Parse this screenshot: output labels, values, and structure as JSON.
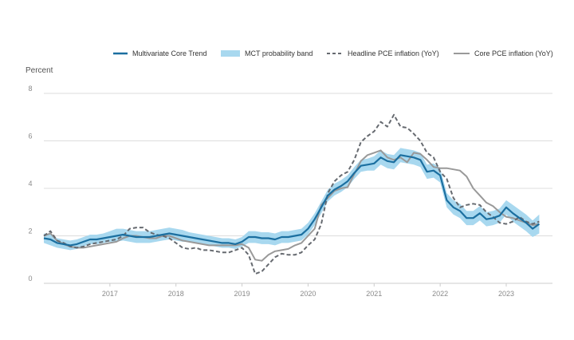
{
  "chart_data": {
    "type": "line",
    "ylabel": "Percent",
    "ylim": [
      0,
      8
    ],
    "yticks": [
      0,
      2,
      4,
      6,
      8
    ],
    "xlim": [
      2016.0,
      2023.7
    ],
    "xticks": [
      "2017",
      "2018",
      "2019",
      "2020",
      "2021",
      "2022",
      "2023"
    ],
    "grid": true,
    "legend_position": "top-right",
    "legend": [
      "Multivariate Core Trend",
      "MCT probability band",
      "Headline PCE inflation (YoY)",
      "Core PCE inflation (YoY)"
    ],
    "colors": {
      "mct": "#1b6fa0",
      "band": "#a8d8ef",
      "headline": "#666a70",
      "core": "#999999",
      "grid": "#dddddd",
      "axis": "#cccccc"
    },
    "series": [
      {
        "name": "Multivariate Core Trend",
        "style": "solid",
        "x": [
          2016.0,
          2016.1,
          2016.2,
          2016.3,
          2016.4,
          2016.5,
          2016.6,
          2016.7,
          2016.8,
          2016.9,
          2017.0,
          2017.1,
          2017.2,
          2017.3,
          2017.4,
          2017.5,
          2017.6,
          2017.7,
          2017.8,
          2017.9,
          2018.0,
          2018.1,
          2018.2,
          2018.3,
          2018.4,
          2018.5,
          2018.6,
          2018.7,
          2018.8,
          2018.9,
          2019.0,
          2019.1,
          2019.2,
          2019.3,
          2019.4,
          2019.5,
          2019.6,
          2019.7,
          2019.8,
          2019.9,
          2020.0,
          2020.1,
          2020.2,
          2020.3,
          2020.4,
          2020.5,
          2020.6,
          2020.7,
          2020.8,
          2020.9,
          2021.0,
          2021.1,
          2021.2,
          2021.3,
          2021.4,
          2021.5,
          2021.6,
          2021.7,
          2021.8,
          2021.9,
          2022.0,
          2022.1,
          2022.2,
          2022.3,
          2022.4,
          2022.5,
          2022.6,
          2022.7,
          2022.8,
          2022.9,
          2023.0,
          2023.1,
          2023.2,
          2023.3,
          2023.4,
          2023.5
        ],
        "y": [
          1.9,
          1.85,
          1.7,
          1.65,
          1.6,
          1.65,
          1.75,
          1.85,
          1.85,
          1.9,
          1.95,
          2.0,
          2.05,
          2.0,
          1.95,
          1.95,
          1.95,
          2.0,
          2.05,
          2.1,
          2.05,
          2.0,
          1.95,
          1.9,
          1.85,
          1.8,
          1.75,
          1.7,
          1.7,
          1.65,
          1.75,
          1.95,
          1.95,
          1.9,
          1.9,
          1.85,
          1.95,
          1.95,
          2.0,
          2.05,
          2.3,
          2.7,
          3.2,
          3.7,
          3.95,
          4.1,
          4.3,
          4.65,
          4.95,
          5.0,
          5.05,
          5.3,
          5.15,
          5.1,
          5.4,
          5.35,
          5.3,
          5.2,
          4.7,
          4.75,
          4.55,
          3.5,
          3.2,
          3.05,
          2.75,
          2.75,
          2.95,
          2.7,
          2.75,
          2.85,
          3.2,
          2.95,
          2.75,
          2.55,
          2.3,
          2.5
        ]
      },
      {
        "name": "MCT probability band",
        "style": "band",
        "x": [
          2016.0,
          2016.1,
          2016.2,
          2016.3,
          2016.4,
          2016.5,
          2016.6,
          2016.7,
          2016.8,
          2016.9,
          2017.0,
          2017.1,
          2017.2,
          2017.3,
          2017.4,
          2017.5,
          2017.6,
          2017.7,
          2017.8,
          2017.9,
          2018.0,
          2018.1,
          2018.2,
          2018.3,
          2018.4,
          2018.5,
          2018.6,
          2018.7,
          2018.8,
          2018.9,
          2019.0,
          2019.1,
          2019.2,
          2019.3,
          2019.4,
          2019.5,
          2019.6,
          2019.7,
          2019.8,
          2019.9,
          2020.0,
          2020.1,
          2020.2,
          2020.3,
          2020.4,
          2020.5,
          2020.6,
          2020.7,
          2020.8,
          2020.9,
          2021.0,
          2021.1,
          2021.2,
          2021.3,
          2021.4,
          2021.5,
          2021.6,
          2021.7,
          2021.8,
          2021.9,
          2022.0,
          2022.1,
          2022.2,
          2022.3,
          2022.4,
          2022.5,
          2022.6,
          2022.7,
          2022.8,
          2022.9,
          2023.0,
          2023.1,
          2023.2,
          2023.3,
          2023.4,
          2023.5
        ],
        "upper": [
          2.1,
          2.05,
          1.9,
          1.85,
          1.8,
          1.85,
          1.95,
          2.05,
          2.05,
          2.1,
          2.2,
          2.3,
          2.3,
          2.25,
          2.2,
          2.2,
          2.2,
          2.25,
          2.3,
          2.35,
          2.3,
          2.25,
          2.15,
          2.1,
          2.05,
          2.0,
          1.95,
          1.9,
          1.9,
          1.85,
          1.95,
          2.2,
          2.2,
          2.15,
          2.15,
          2.1,
          2.2,
          2.2,
          2.25,
          2.3,
          2.55,
          2.95,
          3.45,
          3.95,
          4.2,
          4.35,
          4.55,
          4.9,
          5.2,
          5.25,
          5.35,
          5.6,
          5.45,
          5.4,
          5.7,
          5.65,
          5.6,
          5.5,
          5.0,
          5.05,
          4.85,
          3.8,
          3.5,
          3.35,
          3.05,
          3.05,
          3.25,
          3.0,
          3.05,
          3.15,
          3.5,
          3.3,
          3.1,
          2.9,
          2.65,
          2.9
        ],
        "lower": [
          1.7,
          1.6,
          1.5,
          1.45,
          1.4,
          1.45,
          1.55,
          1.65,
          1.65,
          1.7,
          1.75,
          1.75,
          1.8,
          1.75,
          1.7,
          1.7,
          1.7,
          1.75,
          1.8,
          1.85,
          1.8,
          1.75,
          1.75,
          1.7,
          1.65,
          1.6,
          1.55,
          1.5,
          1.5,
          1.45,
          1.55,
          1.7,
          1.7,
          1.65,
          1.65,
          1.6,
          1.7,
          1.7,
          1.75,
          1.8,
          2.05,
          2.45,
          2.95,
          3.45,
          3.7,
          3.85,
          4.05,
          4.4,
          4.7,
          4.75,
          4.75,
          5.0,
          4.85,
          4.8,
          5.1,
          5.05,
          5.0,
          4.9,
          4.4,
          4.45,
          4.25,
          3.2,
          2.9,
          2.75,
          2.45,
          2.45,
          2.65,
          2.4,
          2.45,
          2.55,
          2.9,
          2.6,
          2.4,
          2.2,
          1.95,
          2.1
        ]
      },
      {
        "name": "Headline PCE inflation (YoY)",
        "style": "dashed",
        "x": [
          2016.0,
          2016.1,
          2016.2,
          2016.3,
          2016.4,
          2016.5,
          2016.6,
          2016.7,
          2016.8,
          2016.9,
          2017.0,
          2017.1,
          2017.2,
          2017.3,
          2017.4,
          2017.5,
          2017.6,
          2017.7,
          2017.8,
          2017.9,
          2018.0,
          2018.1,
          2018.2,
          2018.3,
          2018.4,
          2018.5,
          2018.6,
          2018.7,
          2018.8,
          2018.9,
          2019.0,
          2019.1,
          2019.2,
          2019.3,
          2019.4,
          2019.5,
          2019.6,
          2019.7,
          2019.8,
          2019.9,
          2020.0,
          2020.1,
          2020.2,
          2020.3,
          2020.4,
          2020.5,
          2020.6,
          2020.7,
          2020.8,
          2020.9,
          2021.0,
          2021.1,
          2021.2,
          2021.3,
          2021.4,
          2021.5,
          2021.6,
          2021.7,
          2021.8,
          2021.9,
          2022.0,
          2022.1,
          2022.2,
          2022.3,
          2022.4,
          2022.5,
          2022.6,
          2022.7,
          2022.8,
          2022.9,
          2023.0,
          2023.1,
          2023.2,
          2023.3,
          2023.4,
          2023.5
        ],
        "y": [
          2.0,
          2.2,
          1.8,
          1.7,
          1.55,
          1.5,
          1.55,
          1.65,
          1.7,
          1.75,
          1.8,
          1.85,
          2.0,
          2.3,
          2.35,
          2.35,
          2.15,
          2.05,
          2.0,
          1.9,
          1.7,
          1.5,
          1.45,
          1.5,
          1.4,
          1.4,
          1.35,
          1.3,
          1.3,
          1.4,
          1.5,
          1.2,
          0.4,
          0.5,
          0.8,
          1.1,
          1.25,
          1.2,
          1.2,
          1.3,
          1.6,
          1.85,
          2.5,
          3.8,
          4.3,
          4.55,
          4.7,
          5.2,
          5.95,
          6.2,
          6.4,
          6.8,
          6.6,
          7.1,
          6.6,
          6.55,
          6.3,
          6.0,
          5.5,
          5.3,
          4.7,
          4.4,
          3.6,
          3.2,
          3.3,
          3.35,
          3.3,
          3.0,
          2.8,
          2.55,
          2.5,
          2.6,
          2.8,
          2.6,
          2.5,
          2.6
        ]
      },
      {
        "name": "Core PCE inflation (YoY)",
        "style": "solid",
        "x": [
          2016.0,
          2016.1,
          2016.2,
          2016.3,
          2016.4,
          2016.5,
          2016.6,
          2016.7,
          2016.8,
          2016.9,
          2017.0,
          2017.1,
          2017.2,
          2017.3,
          2017.4,
          2017.5,
          2017.6,
          2017.7,
          2017.8,
          2017.9,
          2018.0,
          2018.1,
          2018.2,
          2018.3,
          2018.4,
          2018.5,
          2018.6,
          2018.7,
          2018.8,
          2018.9,
          2019.0,
          2019.1,
          2019.2,
          2019.3,
          2019.4,
          2019.5,
          2019.6,
          2019.7,
          2019.8,
          2019.9,
          2020.0,
          2020.1,
          2020.2,
          2020.3,
          2020.4,
          2020.5,
          2020.6,
          2020.7,
          2020.8,
          2020.9,
          2021.0,
          2021.1,
          2021.2,
          2021.3,
          2021.4,
          2021.5,
          2021.6,
          2021.7,
          2021.8,
          2021.9,
          2022.0,
          2022.1,
          2022.2,
          2022.3,
          2022.4,
          2022.5,
          2022.6,
          2022.7,
          2022.8,
          2022.9,
          2023.0,
          2023.1,
          2023.2,
          2023.3,
          2023.4,
          2023.5
        ],
        "y": [
          2.0,
          2.1,
          1.8,
          1.65,
          1.55,
          1.5,
          1.5,
          1.55,
          1.6,
          1.65,
          1.7,
          1.75,
          1.9,
          2.0,
          2.0,
          1.95,
          1.9,
          1.9,
          2.0,
          2.0,
          1.9,
          1.8,
          1.75,
          1.7,
          1.65,
          1.6,
          1.6,
          1.6,
          1.6,
          1.6,
          1.65,
          1.5,
          1.0,
          0.95,
          1.2,
          1.35,
          1.4,
          1.45,
          1.6,
          1.7,
          2.0,
          2.3,
          3.3,
          3.6,
          3.9,
          4.0,
          4.05,
          4.6,
          5.15,
          5.4,
          5.5,
          5.6,
          5.3,
          5.2,
          5.3,
          5.1,
          5.5,
          5.45,
          5.2,
          4.9,
          4.85,
          4.85,
          4.8,
          4.75,
          4.5,
          4.0,
          3.7,
          3.4,
          3.25,
          3.0,
          2.8,
          2.75,
          2.65,
          2.55,
          2.45,
          2.5
        ]
      }
    ]
  }
}
